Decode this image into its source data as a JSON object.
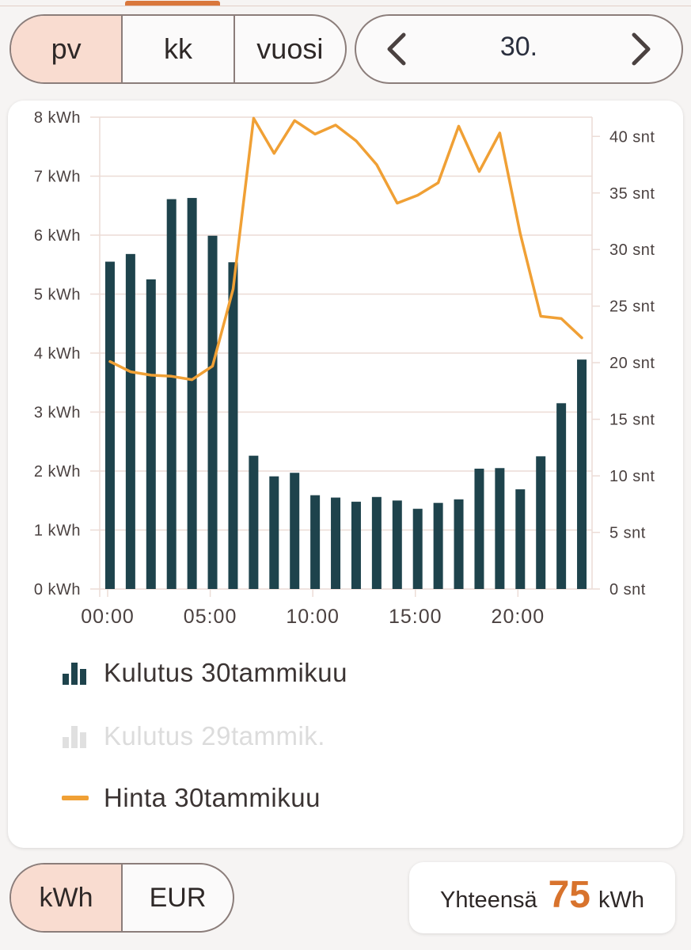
{
  "period_selector": {
    "options": [
      "pv",
      "kk",
      "vuosi"
    ],
    "active": "pv"
  },
  "date_nav": {
    "label": "30."
  },
  "colors": {
    "bars": "#1e434c",
    "line": "#f0a035",
    "accent": "#d8732d",
    "active_segment": "#f9dcd0",
    "faded": "#e0e0e0",
    "grid": "#ecdcd6"
  },
  "legend": [
    {
      "label": "Kulutus 30tammikuu",
      "icon": "bar-chart-icon",
      "color": "#1e434c",
      "faded": false
    },
    {
      "label": "Kulutus 29tammik.",
      "icon": "bar-chart-icon",
      "color": "#e0e0e0",
      "faded": true
    },
    {
      "label": "Hinta 30tammikuu",
      "icon": "line-icon",
      "color": "#f0a035",
      "faded": false
    }
  ],
  "unit_selector": {
    "options": [
      "kWh",
      "EUR"
    ],
    "active": "kWh"
  },
  "total": {
    "label": "Yhteensä",
    "value": "75",
    "unit": "kWh"
  },
  "chart_data": {
    "type": "bar",
    "x_tick_labels": [
      "00:00",
      "05:00",
      "10:00",
      "15:00",
      "20:00"
    ],
    "y_left": {
      "unit": "kWh",
      "ylim": [
        0,
        8
      ],
      "ticks": [
        0,
        1,
        2,
        3,
        4,
        5,
        6,
        7,
        8
      ]
    },
    "y_right": {
      "unit": "snt",
      "ylim": [
        0,
        41.7
      ],
      "ticks": [
        0,
        5,
        10,
        15,
        20,
        25,
        30,
        35,
        40
      ]
    },
    "grid": true,
    "series": [
      {
        "name": "Kulutus 30tammikuu",
        "type": "bar",
        "axis": "left",
        "x": [
          0,
          1,
          2,
          3,
          4,
          5,
          6,
          7,
          8,
          9,
          10,
          11,
          12,
          13,
          14,
          15,
          16,
          17,
          18,
          19,
          20,
          21,
          22,
          23
        ],
        "values": [
          5.55,
          5.68,
          5.25,
          6.61,
          6.63,
          5.99,
          5.54,
          2.26,
          1.91,
          1.97,
          1.59,
          1.55,
          1.48,
          1.56,
          1.5,
          1.36,
          1.46,
          1.52,
          2.04,
          2.05,
          1.69,
          2.25,
          3.15,
          3.89
        ]
      },
      {
        "name": "Hinta 30tammikuu",
        "type": "line",
        "axis": "right",
        "x": [
          0,
          1,
          2,
          3,
          4,
          5,
          6,
          7,
          8,
          9,
          10,
          11,
          12,
          13,
          14,
          15,
          16,
          17,
          18,
          19,
          20,
          21,
          22,
          23
        ],
        "values": [
          20.1,
          19.2,
          18.9,
          18.8,
          18.5,
          19.7,
          26.5,
          41.6,
          38.5,
          41.4,
          40.2,
          41.0,
          39.6,
          37.5,
          34.1,
          34.8,
          35.9,
          40.9,
          36.9,
          40.3,
          31.4,
          24.1,
          23.9,
          22.2
        ]
      }
    ]
  }
}
